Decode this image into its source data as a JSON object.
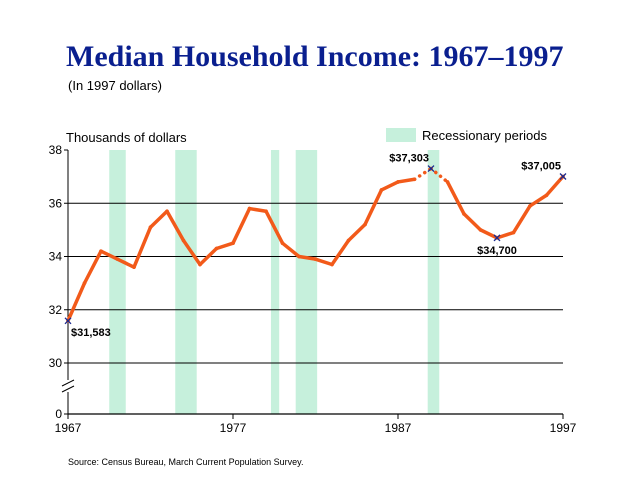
{
  "title": "Median Household Income:  1967–1997",
  "subtitle": "(In 1997 dollars)",
  "source": "Source:  Census Bureau, March Current Population Survey.",
  "chart_data": {
    "type": "line",
    "ylabel": "Thousands of dollars",
    "legend": {
      "label": "Recessionary periods",
      "position": "top-right",
      "color": "#c6f0dc"
    },
    "line_color": "#f25a1a",
    "axis_break": true,
    "x_ticks": [
      {
        "value": 1967,
        "label": "1967"
      },
      {
        "value": 1977,
        "label": "1977"
      },
      {
        "value": 1987,
        "label": "1987"
      },
      {
        "value": 1997,
        "label": "1997"
      }
    ],
    "y_ticks": [
      {
        "value": 38,
        "label": "38"
      },
      {
        "value": 36,
        "label": "36"
      },
      {
        "value": 34,
        "label": "34"
      },
      {
        "value": 32,
        "label": "32"
      },
      {
        "value": 30,
        "label": "30"
      },
      {
        "value": 0,
        "label": "0"
      }
    ],
    "xlim": [
      1967,
      1997
    ],
    "ylim": [
      30,
      38
    ],
    "grid": "horizontal",
    "recessions": [
      [
        1969.5,
        1970.5
      ],
      [
        1973.5,
        1974.8
      ],
      [
        1979.3,
        1979.8
      ],
      [
        1980.8,
        1982.1
      ],
      [
        1988.8,
        1989.5
      ]
    ],
    "series": [
      {
        "x": [
          1967,
          1968,
          1969,
          1970,
          1971,
          1972,
          1973,
          1974,
          1975,
          1976,
          1977,
          1978,
          1979,
          1980,
          1981,
          1982,
          1983,
          1984,
          1985,
          1986,
          1987,
          1988,
          1989,
          1990,
          1991,
          1992,
          1993,
          1994,
          1995,
          1996,
          1997
        ],
        "y": [
          31.583,
          33.0,
          34.2,
          33.9,
          33.6,
          35.1,
          35.7,
          34.6,
          33.7,
          34.3,
          34.5,
          35.8,
          35.7,
          34.5,
          34.0,
          33.9,
          33.7,
          34.6,
          35.2,
          36.5,
          36.8,
          36.9,
          37.303,
          36.8,
          35.6,
          35.0,
          34.7,
          34.9,
          35.9,
          36.3,
          37.005
        ],
        "dotted_range": [
          1988,
          1990
        ]
      }
    ],
    "annotations": [
      {
        "year": 1967,
        "value": 31.583,
        "label": "$31,583",
        "anchor": "below-right"
      },
      {
        "year": 1989,
        "value": 37.303,
        "label": "$37,303",
        "anchor": "above-left"
      },
      {
        "year": 1993,
        "value": 34.7,
        "label": "$34,700",
        "anchor": "below"
      },
      {
        "year": 1997,
        "value": 37.005,
        "label": "$37,005",
        "anchor": "above-left"
      }
    ]
  }
}
